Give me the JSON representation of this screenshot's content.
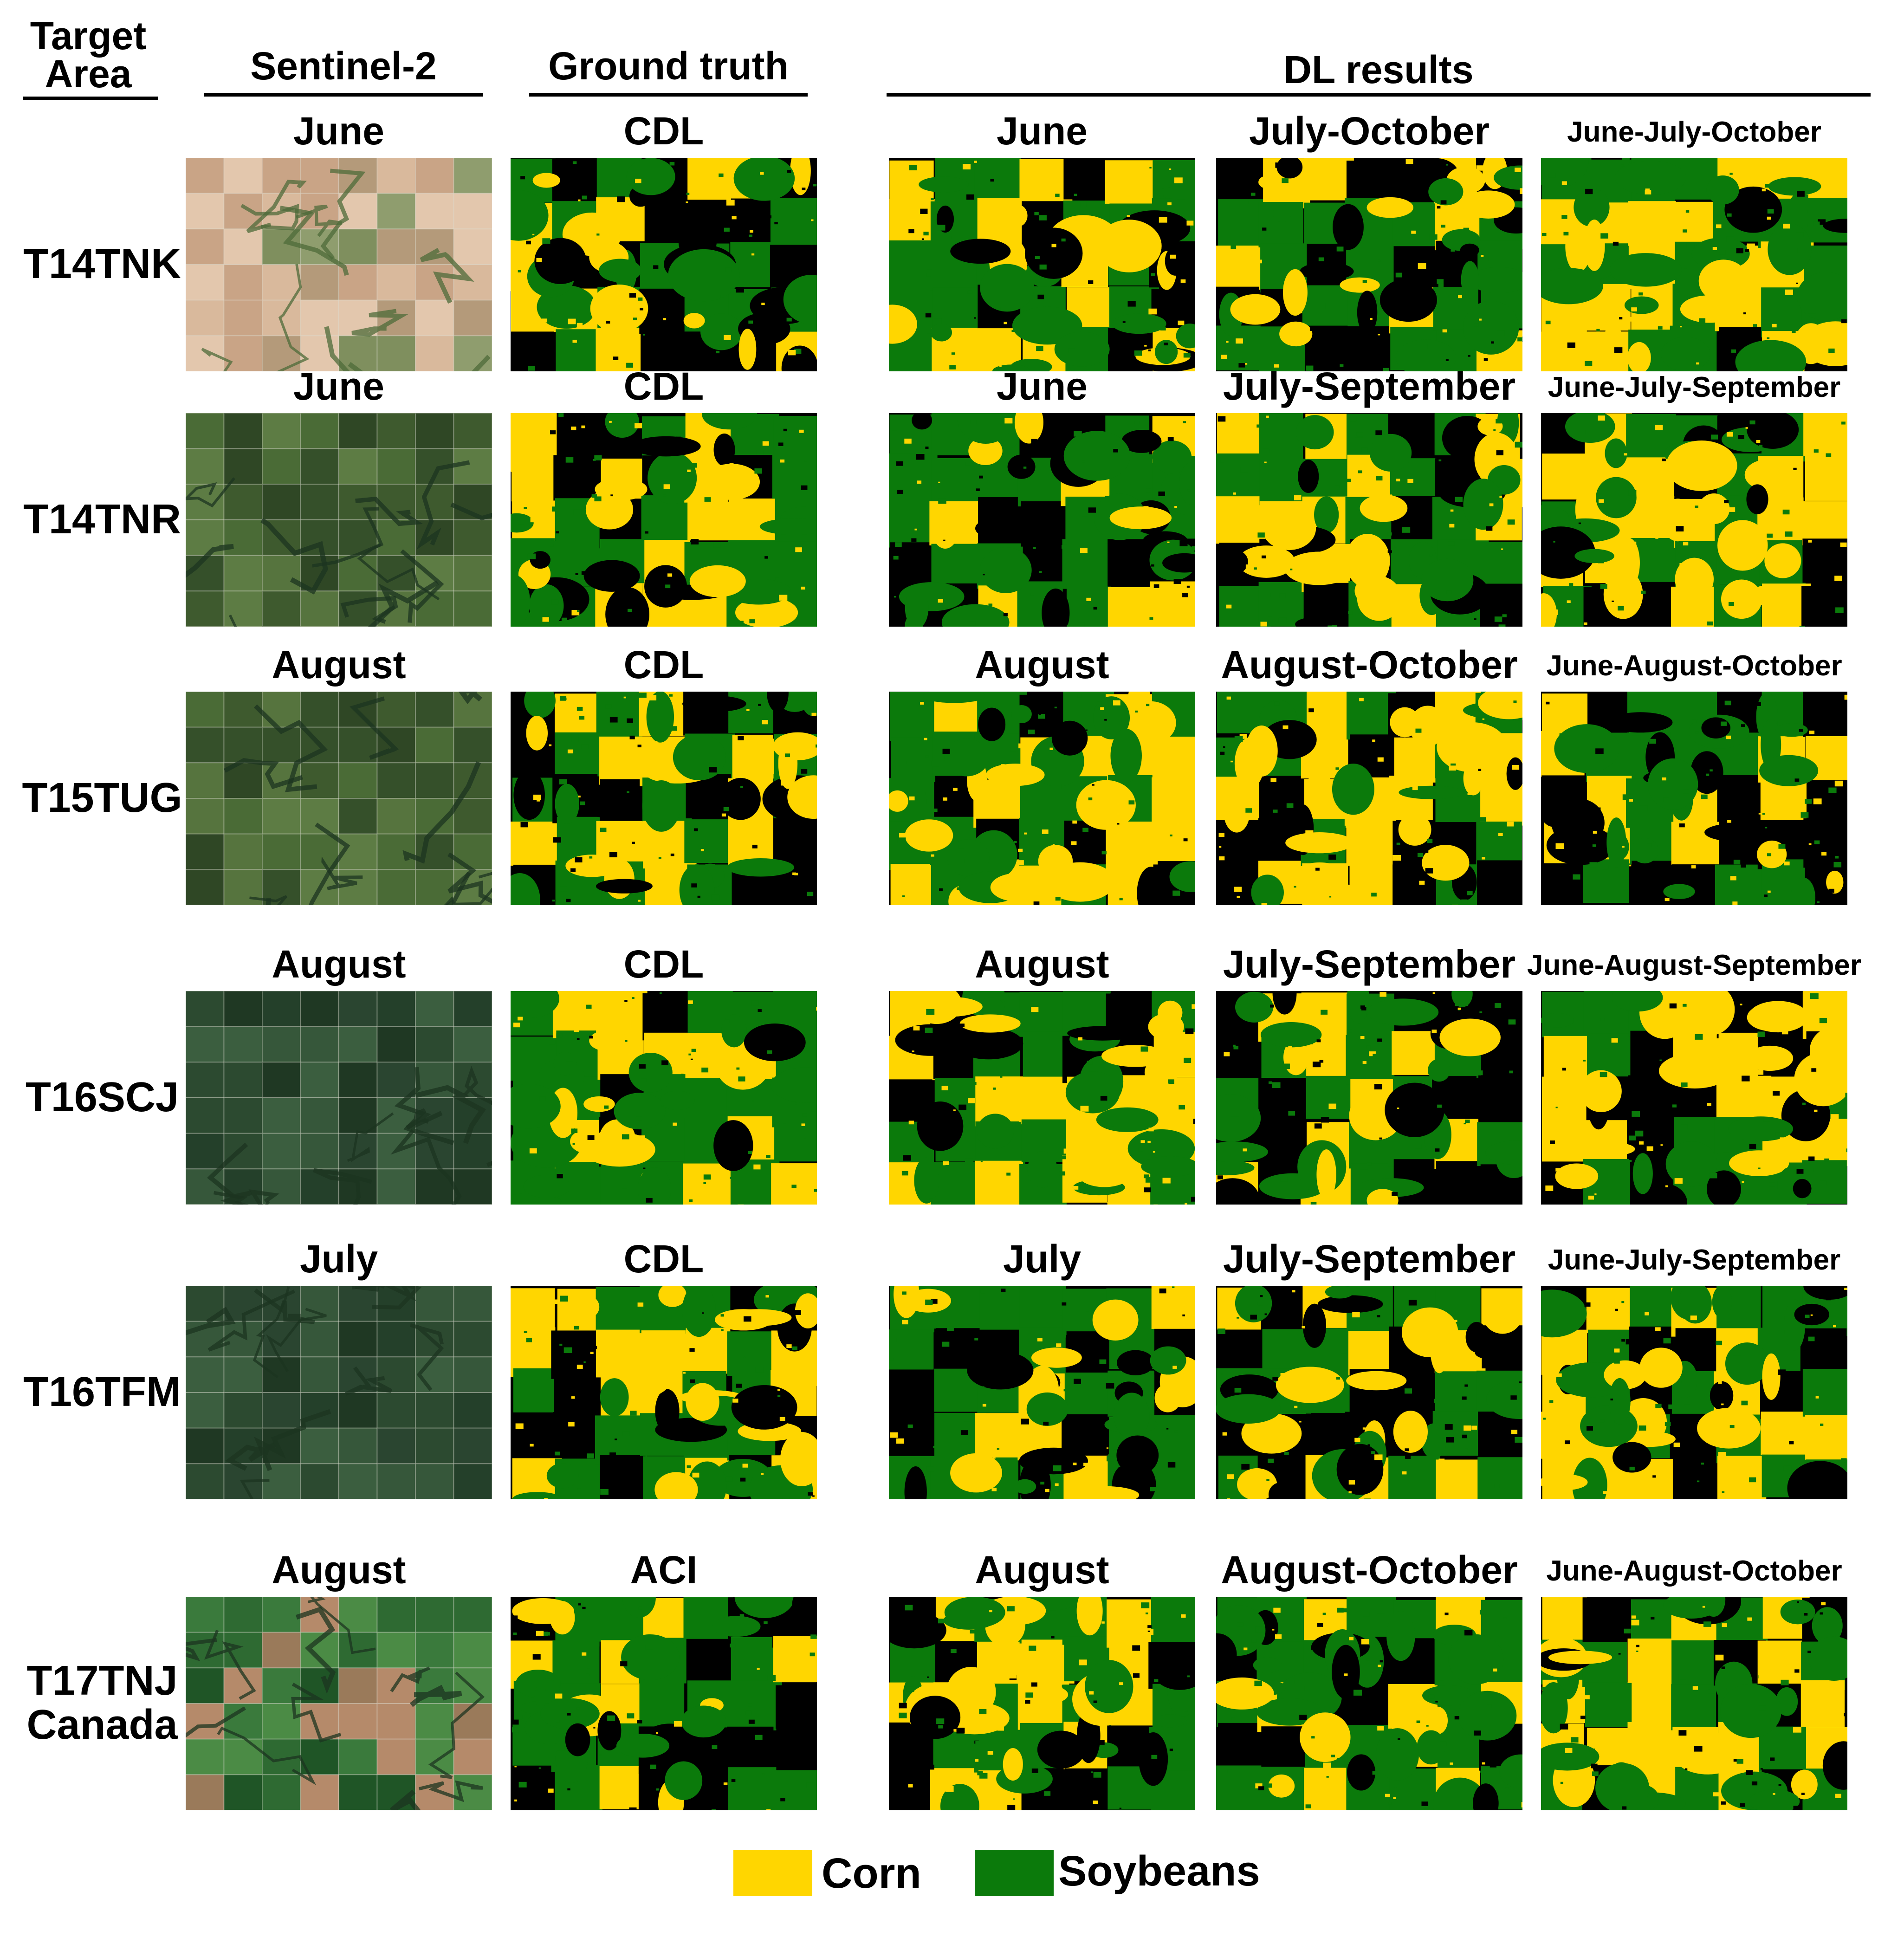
{
  "header": {
    "target_area": [
      "Target",
      "Area"
    ],
    "sentinel": "Sentinel-2",
    "ground_truth": "Ground truth",
    "dl_results": "DL results"
  },
  "colors": {
    "corn": "#ffd600",
    "soybeans": "#0b7a0b",
    "other": "#000000"
  },
  "rows": [
    {
      "area": [
        "T14TNK"
      ],
      "sentinel_month": "June",
      "truth": "CDL",
      "dl": [
        "June",
        "July-October",
        "June-July-October"
      ],
      "sat_style": "tan"
    },
    {
      "area": [
        "T14TNR"
      ],
      "sentinel_month": "June",
      "truth": "CDL",
      "dl": [
        "June",
        "July-September",
        "June-July-September"
      ],
      "sat_style": "green"
    },
    {
      "area": [
        "T15TUG"
      ],
      "sentinel_month": "August",
      "truth": "CDL",
      "dl": [
        "August",
        "August-October",
        "June-August-October"
      ],
      "sat_style": "green"
    },
    {
      "area": [
        "T16SCJ"
      ],
      "sentinel_month": "August",
      "truth": "CDL",
      "dl": [
        "August",
        "July-September",
        "June-August-September"
      ],
      "sat_style": "dark"
    },
    {
      "area": [
        "T16TFM"
      ],
      "sentinel_month": "July",
      "truth": "CDL",
      "dl": [
        "July",
        "July-September",
        "June-July-September"
      ],
      "sat_style": "dark"
    },
    {
      "area": [
        "T17TNJ",
        "Canada"
      ],
      "sentinel_month": "August",
      "truth": "ACI",
      "dl": [
        "August",
        "August-October",
        "June-August-October"
      ],
      "sat_style": "mixed"
    }
  ],
  "legend": {
    "corn": "Corn",
    "soybeans": "Soybeans"
  }
}
